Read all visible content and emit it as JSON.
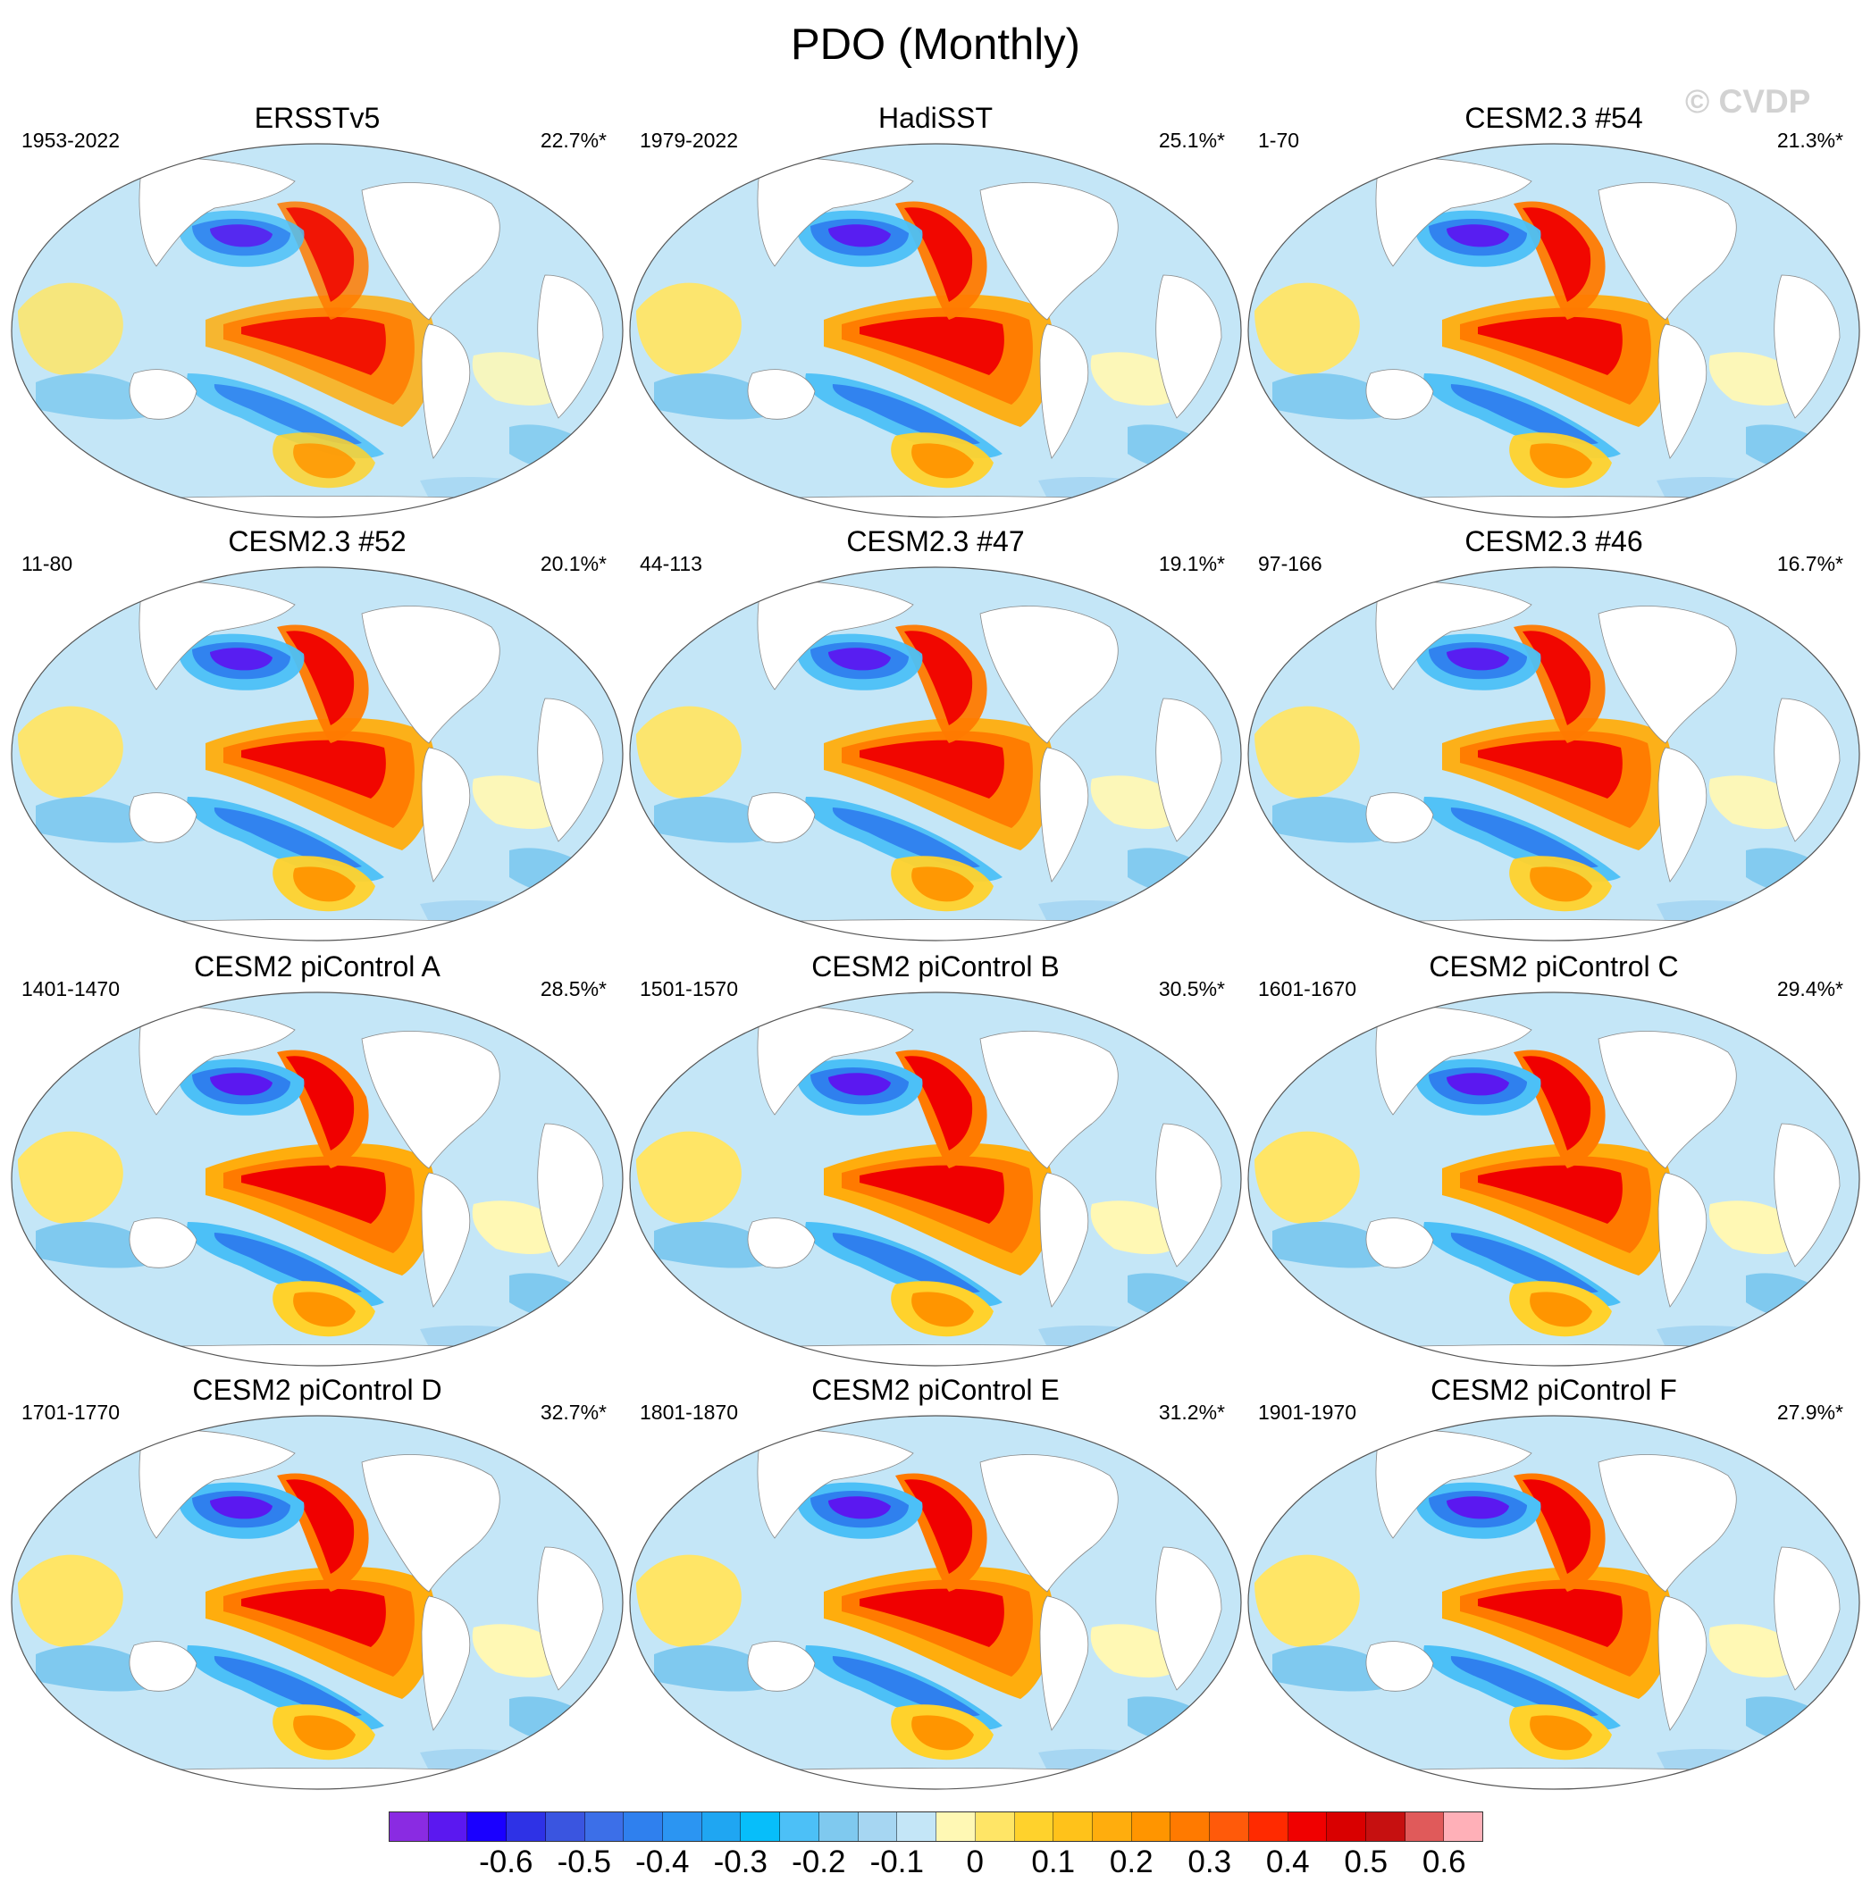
{
  "title": "PDO (Monthly)",
  "watermark": "© CVDP",
  "panels": [
    {
      "title": "ERSSTv5",
      "period": "1953-2022",
      "pct": "22.7%*"
    },
    {
      "title": "HadiSST",
      "period": "1979-2022",
      "pct": "25.1%*"
    },
    {
      "title": "CESM2.3 #54",
      "period": "1-70",
      "pct": "21.3%*"
    },
    {
      "title": "CESM2.3 #52",
      "period": "11-80",
      "pct": "20.1%*"
    },
    {
      "title": "CESM2.3 #47",
      "period": "44-113",
      "pct": "19.1%*"
    },
    {
      "title": "CESM2.3 #46",
      "period": "97-166",
      "pct": "16.7%*"
    },
    {
      "title": "CESM2 piControl A",
      "period": "1401-1470",
      "pct": "28.5%*"
    },
    {
      "title": "CESM2 piControl B",
      "period": "1501-1570",
      "pct": "30.5%*"
    },
    {
      "title": "CESM2 piControl C",
      "period": "1601-1670",
      "pct": "29.4%*"
    },
    {
      "title": "CESM2 piControl D",
      "period": "1701-1770",
      "pct": "32.7%*"
    },
    {
      "title": "CESM2 piControl E",
      "period": "1801-1870",
      "pct": "31.2%*"
    },
    {
      "title": "CESM2 piControl F",
      "period": "1901-1970",
      "pct": "27.9%*"
    }
  ],
  "colorbar": {
    "colors": [
      "#8a2be2",
      "#5b18f0",
      "#1a00ff",
      "#2e32e6",
      "#3a55e0",
      "#3c6fe8",
      "#2f80ee",
      "#2b95f2",
      "#1fa6f2",
      "#07befa",
      "#4cc0f7",
      "#7fc9ef",
      "#a6d6f2",
      "#c4e6f7",
      "#fff8b4",
      "#ffe566",
      "#ffd22c",
      "#ffc21a",
      "#ffad0d",
      "#ff9500",
      "#ff7a00",
      "#ff5a0a",
      "#ff2a00",
      "#f00000",
      "#d90000",
      "#c61010",
      "#e05a5a",
      "#ffb0b8"
    ],
    "labels": [
      {
        "text": "-0.6",
        "index": 3
      },
      {
        "text": "-0.5",
        "index": 5
      },
      {
        "text": "-0.4",
        "index": 7
      },
      {
        "text": "-0.3",
        "index": 9
      },
      {
        "text": "-0.2",
        "index": 11
      },
      {
        "text": "-0.1",
        "index": 13
      },
      {
        "text": "0",
        "index": 15
      },
      {
        "text": "0.1",
        "index": 17
      },
      {
        "text": "0.2",
        "index": 19
      },
      {
        "text": "0.3",
        "index": 21
      },
      {
        "text": "0.4",
        "index": 23
      },
      {
        "text": "0.5",
        "index": 25
      },
      {
        "text": "0.6",
        "index": 27
      }
    ]
  }
}
